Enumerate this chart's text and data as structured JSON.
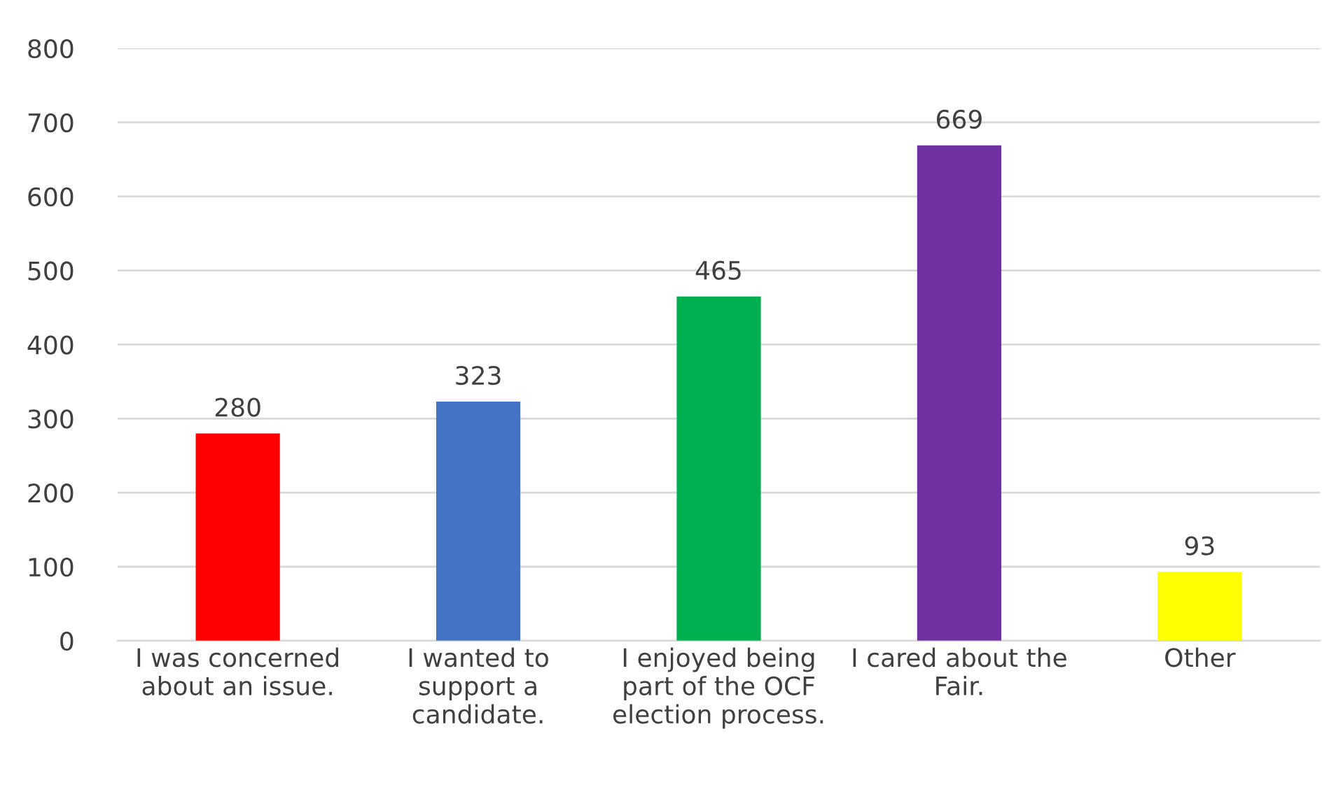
{
  "chart_data": {
    "type": "bar",
    "categories": [
      "I was concerned\nabout an issue.",
      "I wanted to\nsupport a\ncandidate.",
      "I enjoyed being\npart of the OCF\nelection process.",
      "I cared about the\nFair.",
      "Other"
    ],
    "values": [
      280,
      323,
      465,
      669,
      93
    ],
    "colors": [
      "#ff0000",
      "#4472c4",
      "#00b050",
      "#7030a0",
      "#ffff00"
    ],
    "ylim": [
      0,
      800
    ],
    "yticks": [
      0,
      100,
      200,
      300,
      400,
      500,
      600,
      700,
      800
    ],
    "grid": "y",
    "data_labels": true
  }
}
